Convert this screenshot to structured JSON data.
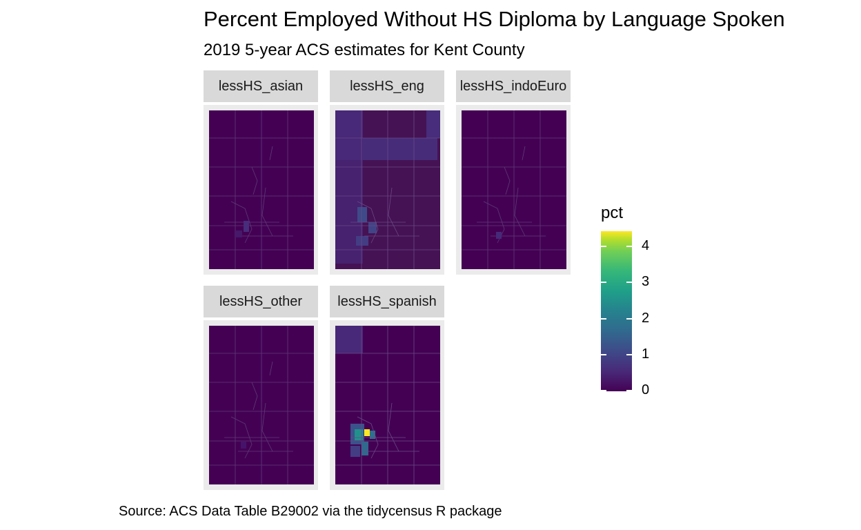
{
  "title": "Percent Employed Without HS Diploma by Language Spoken",
  "subtitle": "2019 5-year ACS estimates for Kent County",
  "caption": "Source: ACS Data Table B29002 via the tidycensus R package",
  "legend": {
    "title": "pct",
    "ticks": [
      "0",
      "1",
      "2",
      "3",
      "4"
    ],
    "range": [
      0,
      4.4
    ],
    "palette": "viridis",
    "low_color": "#440154",
    "high_color": "#fde725"
  },
  "panels": [
    {
      "label": "lessHS_asian",
      "fill": "#440154",
      "tract_fill": "#46196a"
    },
    {
      "label": "lessHS_eng",
      "fill": "#451254",
      "tract_fill": "#472d7b"
    },
    {
      "label": "lessHS_indoEuro",
      "fill": "#440154",
      "tract_fill": "#462a7a"
    },
    {
      "label": "lessHS_other",
      "fill": "#440154",
      "tract_fill": "#45136a"
    },
    {
      "label": "lessHS_spanish",
      "fill": "#440154",
      "tract_fill": "#2c728e"
    }
  ]
}
